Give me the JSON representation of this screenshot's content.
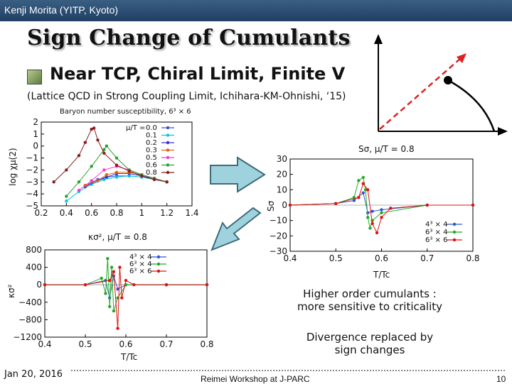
{
  "header": {
    "author": "Kenji Morita (YITP, Kyoto)"
  },
  "slide": {
    "title": "Sign Change of Cumulants",
    "subtitle": "Near TCP, Chiral Limit, Finite V",
    "reference": "(Lattice QCD in Strong Coupling Limit, Ichihara-KM-Ohnishi, ‘15)",
    "note1_line1": "Higher order cumulants :",
    "note1_line2": "more sensitive to criticality",
    "note2_line1": "Divergence replaced by",
    "note2_line2": "sign changes"
  },
  "footer": {
    "date": "Jan 20, 2016",
    "venue": "Reimei Workshop at J-PARC",
    "page": "10"
  },
  "colors": {
    "topbar": "#2b4e74",
    "arrow_fill": "#9ed3de",
    "arrow_stroke": "#3d6b7a",
    "dashed_arrow": "#dd2222"
  },
  "chart_data": [
    {
      "type": "line",
      "title": "Baryon number susceptibility, 6³ × 6",
      "ylabel": "log χμ(2)",
      "xlim": [
        0.2,
        1.4
      ],
      "ylim": [
        -5,
        2
      ],
      "xticks": [
        "0.2",
        "0.4",
        "0.6",
        "0.8",
        "1",
        "1.2",
        "1.4"
      ],
      "yticks": [
        "2",
        "1",
        "0",
        "−1",
        "−2",
        "−3",
        "−4",
        "−5"
      ],
      "legend_title": "μ/T =",
      "legend_position": "top-right",
      "series": [
        {
          "name": "0.0",
          "color": "#3355cc",
          "x": [
            0.55,
            0.65,
            0.72,
            0.8,
            0.9,
            1.0,
            1.1,
            1.2
          ],
          "y": [
            -3.3,
            -2.8,
            -2.6,
            -2.5,
            -2.5,
            -2.6,
            -2.8,
            -3.0
          ]
        },
        {
          "name": "0.1",
          "color": "#00c8e8",
          "x": [
            0.4,
            0.5,
            0.6,
            0.7,
            0.8,
            0.9,
            1.0,
            1.1,
            1.2
          ],
          "y": [
            -4.6,
            -3.8,
            -3.2,
            -2.8,
            -2.6,
            -2.5,
            -2.6,
            -2.8,
            -3.0
          ]
        },
        {
          "name": "0.2",
          "color": "#3a2fcf",
          "x": [
            0.55,
            0.65,
            0.72,
            0.8,
            0.9,
            1.0,
            1.1,
            1.2
          ],
          "y": [
            -3.4,
            -2.9,
            -2.6,
            -2.3,
            -2.3,
            -2.5,
            -2.7,
            -3.0
          ]
        },
        {
          "name": "0.3",
          "color": "#e06010",
          "x": [
            0.55,
            0.65,
            0.72,
            0.8,
            0.9,
            1.0,
            1.1,
            1.2
          ],
          "y": [
            -3.3,
            -2.9,
            -2.4,
            -2.2,
            -2.2,
            -2.4,
            -2.7,
            -3.0
          ]
        },
        {
          "name": "0.5",
          "color": "#ff33cc",
          "x": [
            0.5,
            0.6,
            0.7,
            0.8,
            0.9,
            1.0,
            1.1,
            1.2
          ],
          "y": [
            -3.7,
            -2.9,
            -2.0,
            -1.7,
            -2.0,
            -2.4,
            -2.7,
            -3.0
          ]
        },
        {
          "name": "0.6",
          "color": "#2ca02c",
          "x": [
            0.4,
            0.5,
            0.6,
            0.7,
            0.72,
            0.8,
            0.9,
            1.0,
            1.1,
            1.2
          ],
          "y": [
            -4.2,
            -3.0,
            -1.7,
            -0.3,
            0.0,
            -1.0,
            -2.0,
            -2.4,
            -2.7,
            -3.0
          ]
        },
        {
          "name": "0.8",
          "color": "#8b1a1a",
          "x": [
            0.3,
            0.4,
            0.5,
            0.55,
            0.6,
            0.62,
            0.65,
            0.7,
            0.8,
            0.9,
            1.0,
            1.1,
            1.2
          ],
          "y": [
            -3.0,
            -2.0,
            -0.8,
            0.3,
            1.4,
            1.5,
            0.5,
            -0.6,
            -1.6,
            -2.1,
            -2.5,
            -2.8,
            -3.0
          ]
        }
      ]
    },
    {
      "type": "line",
      "title": "Sσ, μ/T = 0.8",
      "ylabel": "Sσ",
      "xlabel": "T/Tc",
      "xlim": [
        0.4,
        0.8
      ],
      "ylim": [
        -30,
        30
      ],
      "xticks": [
        "0.4",
        "0.5",
        "0.6",
        "0.7",
        "0.8"
      ],
      "yticks": [
        "30",
        "20",
        "10",
        "0",
        "−10",
        "−20",
        "−30"
      ],
      "legend_position": "bottom-right",
      "series": [
        {
          "name": "4³ × 4",
          "color": "#3355cc",
          "x": [
            0.4,
            0.5,
            0.54,
            0.56,
            0.57,
            0.58,
            0.6,
            0.7,
            0.8
          ],
          "y": [
            0,
            1,
            3,
            8,
            -5,
            -4,
            -3,
            0,
            0
          ]
        },
        {
          "name": "6³ × 4",
          "color": "#22aa22",
          "x": [
            0.4,
            0.5,
            0.54,
            0.55,
            0.56,
            0.565,
            0.57,
            0.575,
            0.58,
            0.6,
            0.7,
            0.8
          ],
          "y": [
            0,
            1,
            5,
            16,
            18,
            10,
            -8,
            -15,
            -10,
            -5,
            0,
            0
          ]
        },
        {
          "name": "6³ × 6",
          "color": "#e01010",
          "x": [
            0.4,
            0.5,
            0.55,
            0.56,
            0.57,
            0.58,
            0.59,
            0.6,
            0.62,
            0.7,
            0.8
          ],
          "y": [
            0,
            1,
            5,
            14,
            10,
            -12,
            -18,
            -8,
            -2,
            0,
            0
          ]
        }
      ]
    },
    {
      "type": "line",
      "title": "κσ², μ/T = 0.8",
      "ylabel": "κσ²",
      "xlabel": "T/Tc",
      "xlim": [
        0.4,
        0.8
      ],
      "ylim": [
        -1200,
        800
      ],
      "xticks": [
        "0.4",
        "0.5",
        "0.6",
        "0.7",
        "0.8"
      ],
      "yticks": [
        "800",
        "400",
        "0",
        "−400",
        "−800",
        "−1200"
      ],
      "legend_position": "top-right",
      "series": [
        {
          "name": "4³ × 4",
          "color": "#3355cc",
          "x": [
            0.4,
            0.5,
            0.55,
            0.56,
            0.57,
            0.58,
            0.6,
            0.7,
            0.8
          ],
          "y": [
            0,
            0,
            100,
            -300,
            200,
            -100,
            0,
            0,
            0
          ]
        },
        {
          "name": "6³ × 4",
          "color": "#22aa22",
          "x": [
            0.4,
            0.5,
            0.54,
            0.55,
            0.555,
            0.56,
            0.565,
            0.57,
            0.58,
            0.6,
            0.7,
            0.8
          ],
          "y": [
            0,
            0,
            150,
            -200,
            600,
            -500,
            400,
            -600,
            -300,
            0,
            0,
            0
          ]
        },
        {
          "name": "6³ × 6",
          "color": "#e01010",
          "x": [
            0.4,
            0.5,
            0.56,
            0.57,
            0.58,
            0.585,
            0.59,
            0.6,
            0.62,
            0.7,
            0.8
          ],
          "y": [
            0,
            0,
            100,
            300,
            -1000,
            400,
            -300,
            100,
            0,
            0,
            0
          ]
        }
      ]
    }
  ]
}
